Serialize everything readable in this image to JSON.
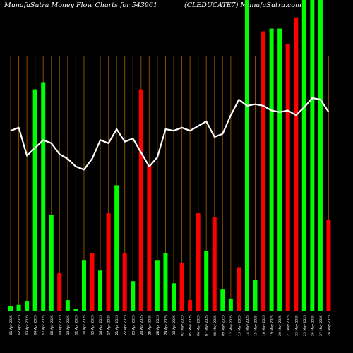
{
  "title_left": "MunafaSutra  Money Flow  Charts for 543961",
  "title_right": "(CLEDUCATE7) MunafaSutra.com",
  "colors": {
    "background": "#000000",
    "up": "#00ff00",
    "down": "#ff0000",
    "grid": "#8a4a00",
    "line": "#ffffff",
    "label": "#ffffff"
  },
  "chart_data": {
    "type": "bar",
    "ylim": [
      0,
      100
    ],
    "categories": [
      "04 Feb 2025",
      "05 Feb 2025",
      "06 Feb 2025",
      "07 Feb 2025",
      "10 Feb 2025",
      "11 Feb 2025",
      "12 Feb 2025",
      "13 Feb 2025",
      "14 Feb 2025",
      "17 Feb 2025",
      "18 Feb 2025",
      "19 Feb 2025",
      "20 Feb 2025",
      "21 Feb 2025",
      "24 Feb 2025",
      "25 Feb 2025",
      "27 Feb 2025",
      "28 Feb 2025",
      "03 Mar 2025",
      "04 Mar 2025",
      "05 Mar 2025",
      "06 Mar 2025",
      "07 Mar 2025",
      "10 Mar 2025",
      "11 Mar 2025",
      "12 Mar 2025",
      "13 Mar 2025",
      "17 Mar 2025",
      "18 Mar 2025",
      "19 Mar 2025",
      "20 Mar 2025",
      "21 Mar 2025",
      "24 Mar 2025",
      "25 Mar 2025",
      "26 Mar 2025",
      "27 Mar 2025",
      "28 Mar 2025"
    ],
    "bars": [
      {
        "value": 1.8,
        "color": "green"
      },
      {
        "value": 2.1,
        "color": "green"
      },
      {
        "value": 3.2,
        "color": "green"
      },
      {
        "value": 71.3,
        "color": "green"
      },
      {
        "value": 73.6,
        "color": "green"
      },
      {
        "value": 31.0,
        "color": "green"
      },
      {
        "value": 12.4,
        "color": "red"
      },
      {
        "value": 3.6,
        "color": "green"
      },
      {
        "value": 0.7,
        "color": "green"
      },
      {
        "value": 16.5,
        "color": "green"
      },
      {
        "value": 18.7,
        "color": "red"
      },
      {
        "value": 13.1,
        "color": "green"
      },
      {
        "value": 31.5,
        "color": "red"
      },
      {
        "value": 40.5,
        "color": "green"
      },
      {
        "value": 18.7,
        "color": "red"
      },
      {
        "value": 9.7,
        "color": "green"
      },
      {
        "value": 71.3,
        "color": "red"
      },
      {
        "value": 47.4,
        "color": "red"
      },
      {
        "value": 16.5,
        "color": "green"
      },
      {
        "value": 18.7,
        "color": "green"
      },
      {
        "value": 9.0,
        "color": "green"
      },
      {
        "value": 15.5,
        "color": "red"
      },
      {
        "value": 3.6,
        "color": "red"
      },
      {
        "value": 31.5,
        "color": "red"
      },
      {
        "value": 19.4,
        "color": "green"
      },
      {
        "value": 30.2,
        "color": "red"
      },
      {
        "value": 7.0,
        "color": "green"
      },
      {
        "value": 4.1,
        "color": "green"
      },
      {
        "value": 14.2,
        "color": "red"
      },
      {
        "value": 100.0,
        "color": "green"
      },
      {
        "value": 10.1,
        "color": "green"
      },
      {
        "value": 89.9,
        "color": "red"
      },
      {
        "value": 90.8,
        "color": "green"
      },
      {
        "value": 90.8,
        "color": "green"
      },
      {
        "value": 85.8,
        "color": "red"
      },
      {
        "value": 94.4,
        "color": "red"
      },
      {
        "value": 100.0,
        "color": "green"
      },
      {
        "value": 100.0,
        "color": "green"
      },
      {
        "value": 100.0,
        "color": "green"
      },
      {
        "value": 29.3,
        "color": "red"
      }
    ],
    "line": [
      58.0,
      59.0,
      50.0,
      52.5,
      55.0,
      54.0,
      50.5,
      49.0,
      46.5,
      45.5,
      49.0,
      55.0,
      54.0,
      58.5,
      54.5,
      55.5,
      51.0,
      46.5,
      49.5,
      58.5,
      58.0,
      59.0,
      58.0,
      59.5,
      61.0,
      56.0,
      57.0,
      63.0,
      68.0,
      66.0,
      66.5,
      66.0,
      64.5,
      64.0,
      64.5,
      63.0,
      65.5,
      68.5,
      68.0,
      64.0
    ],
    "x_labels": [
      "01 Apr 2025",
      "02 Apr 2025",
      "03 Apr 2025",
      "04 Apr 2025",
      "07 Apr 2025",
      "08 Apr 2025",
      "09 Apr 2025",
      "10 Apr 2025",
      "11 Apr 2025",
      "14 Apr 2025",
      "15 Apr 2025",
      "16 Apr 2025",
      "17 Apr 2025",
      "21 Apr 2025",
      "22 Apr 2025",
      "23 Apr 2025",
      "24 Apr 2025",
      "25 Apr 2025",
      "28 Apr 2025",
      "29 Apr 2025",
      "30 Apr 2025",
      "02 May 2025",
      "05 May 2025",
      "06 May 2025",
      "07 May 2025",
      "08 May 2025",
      "09 May 2025",
      "12 May 2025",
      "13 May 2025",
      "14 May 2025",
      "15 May 2025",
      "16 May 2025",
      "19 May 2025",
      "20 May 2025",
      "21 May 2025",
      "22 May 2025",
      "23 May 2025",
      "26 May 2025",
      "27 May 2025",
      "28 May 2025"
    ]
  }
}
